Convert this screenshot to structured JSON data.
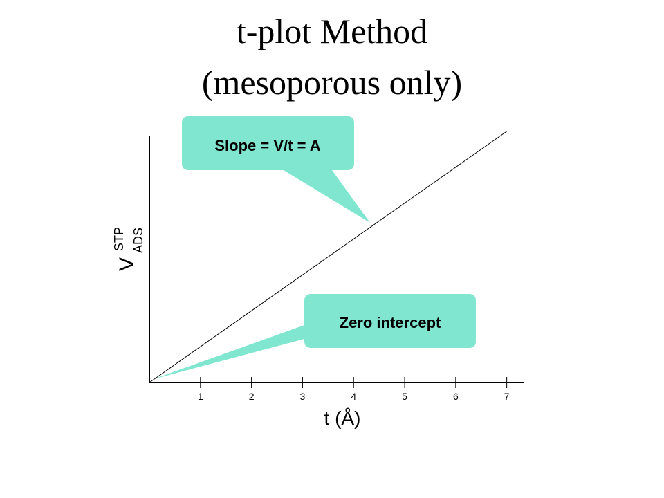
{
  "chart_data": {
    "type": "line",
    "title": "t-plot Method",
    "subtitle": "(mesoporous only)",
    "ylabel": {
      "main": "V",
      "sup": "STP",
      "sub": "ADS"
    },
    "xlabel": "t (Å)",
    "x": [
      0,
      7
    ],
    "series": [
      {
        "color": "#000000",
        "values": [
          0,
          1.02
        ]
      }
    ],
    "xlim": [
      0,
      7.33
    ],
    "ylim": [
      0,
      1
    ],
    "xticks": [
      1,
      2,
      3,
      4,
      5,
      6,
      7
    ],
    "annotations": [
      "Slope = V/t = A",
      "Zero intercept"
    ],
    "callout_color": "#80e6d0"
  }
}
